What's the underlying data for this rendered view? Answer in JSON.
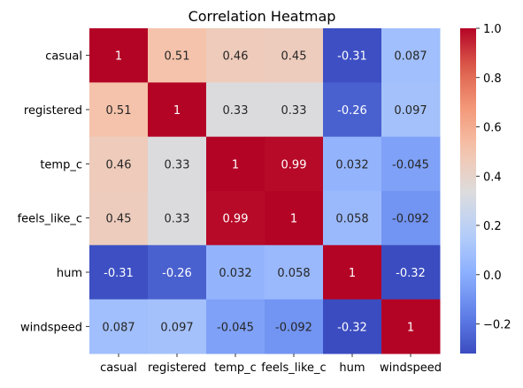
{
  "chart_data": {
    "type": "heatmap",
    "title": "Correlation Heatmap",
    "xlabel": "",
    "ylabel": "",
    "x_categories": [
      "casual",
      "registered",
      "temp_c",
      "feels_like_c",
      "hum",
      "windspeed"
    ],
    "y_categories": [
      "casual",
      "registered",
      "temp_c",
      "feels_like_c",
      "hum",
      "windspeed"
    ],
    "values": [
      [
        1,
        0.51,
        0.46,
        0.45,
        -0.31,
        0.087
      ],
      [
        0.51,
        1,
        0.33,
        0.33,
        -0.26,
        0.097
      ],
      [
        0.46,
        0.33,
        1,
        0.99,
        0.032,
        -0.045
      ],
      [
        0.45,
        0.33,
        0.99,
        1,
        0.058,
        -0.092
      ],
      [
        -0.31,
        -0.26,
        0.032,
        0.058,
        1,
        -0.32
      ],
      [
        0.087,
        0.097,
        -0.045,
        -0.092,
        -0.32,
        1
      ]
    ],
    "value_labels": [
      [
        "1",
        "0.51",
        "0.46",
        "0.45",
        "-0.31",
        "0.087"
      ],
      [
        "0.51",
        "1",
        "0.33",
        "0.33",
        "-0.26",
        "0.097"
      ],
      [
        "0.46",
        "0.33",
        "1",
        "0.99",
        "0.032",
        "-0.045"
      ],
      [
        "0.45",
        "0.33",
        "0.99",
        "1",
        "0.058",
        "-0.092"
      ],
      [
        "-0.31",
        "-0.26",
        "0.032",
        "0.058",
        "1",
        "-0.32"
      ],
      [
        "0.087",
        "0.097",
        "-0.045",
        "-0.092",
        "-0.32",
        "1"
      ]
    ],
    "colormap": "coolwarm",
    "color_range": [
      -0.32,
      1
    ],
    "colorbar": {
      "ticks": [
        -0.2,
        0,
        0.2,
        0.4,
        0.6,
        0.8,
        1.0
      ],
      "tick_labels": [
        "−0.2",
        "0.0",
        "0.2",
        "0.4",
        "0.6",
        "0.8",
        "1.0"
      ],
      "placement": "right"
    },
    "colors": {
      "low": "#3b4cc0",
      "mid": "#dddcdc",
      "high": "#b40426",
      "annotation_light": "#ffffff",
      "annotation_dark": "#262626"
    }
  }
}
